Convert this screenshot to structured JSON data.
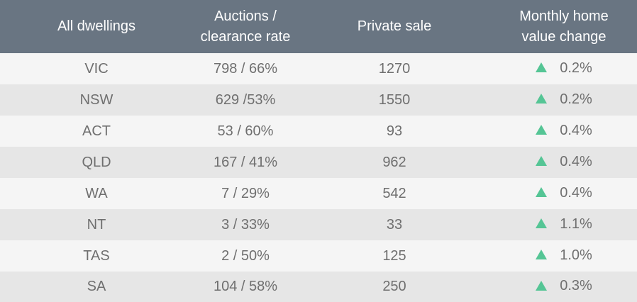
{
  "header": {
    "col1": "All dwellings",
    "col2_line1": "Auctions /",
    "col2_line2": "clearance rate",
    "col3": "Private sale",
    "col4_line1": "Monthly home",
    "col4_line2": "value change"
  },
  "rows": [
    {
      "region": "VIC",
      "auctions": "798 / 66%",
      "private_sale": "1270",
      "change": "0.2%",
      "direction_icon": "triangle-up-icon"
    },
    {
      "region": "NSW",
      "auctions": "629 /53%",
      "private_sale": "1550",
      "change": "0.2%",
      "direction_icon": "triangle-up-icon"
    },
    {
      "region": "ACT",
      "auctions": "53 / 60%",
      "private_sale": "93",
      "change": "0.4%",
      "direction_icon": "triangle-up-icon"
    },
    {
      "region": "QLD",
      "auctions": "167 / 41%",
      "private_sale": "962",
      "change": "0.4%",
      "direction_icon": "triangle-up-icon"
    },
    {
      "region": "WA",
      "auctions": "7 / 29%",
      "private_sale": "542",
      "change": "0.4%",
      "direction_icon": "triangle-up-icon"
    },
    {
      "region": "NT",
      "auctions": "3 / 33%",
      "private_sale": "33",
      "change": "1.1%",
      "direction_icon": "triangle-up-icon"
    },
    {
      "region": "TAS",
      "auctions": "2 / 50%",
      "private_sale": "125",
      "change": "1.0%",
      "direction_icon": "triangle-up-icon"
    },
    {
      "region": "SA",
      "auctions": "104 / 58%",
      "private_sale": "250",
      "change": "0.3%",
      "direction_icon": "triangle-up-icon"
    }
  ],
  "colors": {
    "header_bg": "#697582",
    "header_text": "#ffffff",
    "row_light": "#f5f5f5",
    "row_dark": "#e6e6e6",
    "body_text": "#6f6f6f",
    "up_arrow": "#55c595"
  }
}
